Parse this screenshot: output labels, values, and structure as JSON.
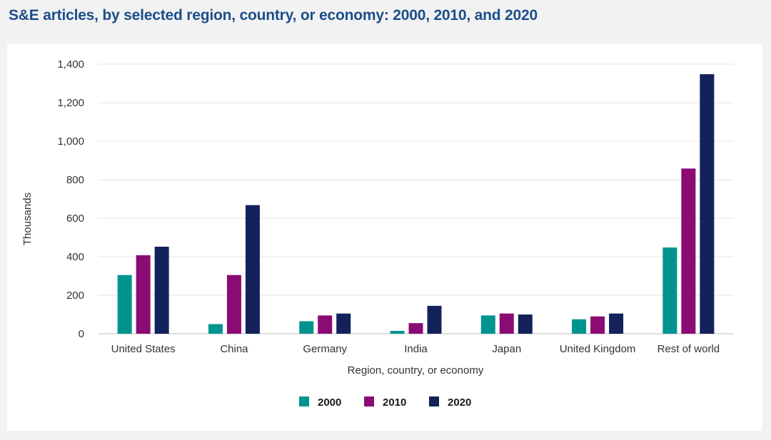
{
  "chart_data": {
    "type": "bar",
    "title": "S&E articles, by selected region, country, or economy: 2000, 2010, and 2020",
    "xlabel": "Region, country, or economy",
    "ylabel": "Thousands",
    "ylim": [
      0,
      1400
    ],
    "yticks": [
      0,
      200,
      400,
      600,
      800,
      1000,
      1200,
      1400
    ],
    "ytick_labels": [
      "0",
      "200",
      "400",
      "600",
      "800",
      "1,000",
      "1,200",
      "1,400"
    ],
    "grid": true,
    "legend_position": "bottom",
    "categories": [
      "United States",
      "China",
      "Germany",
      "India",
      "Japan",
      "United Kingdom",
      "Rest of world"
    ],
    "series": [
      {
        "name": "2000",
        "color": "#009490",
        "values": [
          305,
          50,
          65,
          15,
          95,
          75,
          448
        ]
      },
      {
        "name": "2010",
        "color": "#8b0b74",
        "values": [
          408,
          305,
          95,
          55,
          105,
          90,
          858
        ]
      },
      {
        "name": "2020",
        "color": "#13225a",
        "values": [
          452,
          668,
          105,
          145,
          100,
          105,
          1348
        ]
      }
    ]
  }
}
